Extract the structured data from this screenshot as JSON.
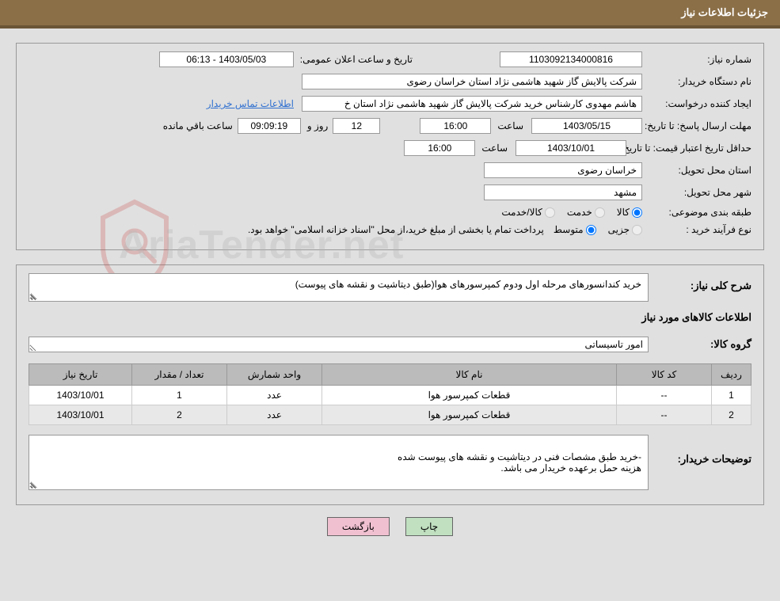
{
  "title_bar": "جزئیات اطلاعات نیاز",
  "panel1": {
    "row1": {
      "need_no_label": "شماره نیاز:",
      "need_no": "1103092134000816",
      "announce_label": "تاریخ و ساعت اعلان عمومی:",
      "announce_value": "1403/05/03 - 06:13"
    },
    "row2": {
      "buyer_label": "نام دستگاه خریدار:",
      "buyer_value": "شرکت پالایش گاز شهید هاشمی نژاد   استان خراسان رضوی"
    },
    "row3": {
      "requester_label": "ایجاد کننده درخواست:",
      "requester_value": "هاشم مهدوی کارشناس خرید شرکت پالایش گاز شهید هاشمی نژاد   استان خ",
      "contact_link": "اطلاعات تماس خریدار"
    },
    "row4": {
      "deadline_label": "مهلت ارسال پاسخ: تا تاریخ:",
      "deadline_date": "1403/05/15",
      "time_label": "ساعت",
      "deadline_time": "16:00",
      "days": "12",
      "days_label": "روز و",
      "countdown": "09:09:19",
      "remain_label": "ساعت باقي مانده"
    },
    "row5": {
      "validity_label": "حداقل تاریخ اعتبار قیمت: تا تاریخ:",
      "validity_date": "1403/10/01",
      "time_label": "ساعت",
      "validity_time": "16:00"
    },
    "row6": {
      "province_label": "استان محل تحویل:",
      "province_value": "خراسان رضوی"
    },
    "row7": {
      "city_label": "شهر محل تحویل:",
      "city_value": "مشهد"
    },
    "row8": {
      "class_label": "طبقه بندی موضوعی:",
      "opt_goods": "کالا",
      "opt_service": "خدمت",
      "opt_both": "کالا/خدمت"
    },
    "row9": {
      "type_label": "نوع فرآیند خرید :",
      "opt_small": "جزیی",
      "opt_medium": "متوسط",
      "note": "پرداخت تمام یا بخشی از مبلغ خرید،از محل \"اسناد خزانه اسلامی\" خواهد بود."
    }
  },
  "panel2": {
    "desc_label": "شرح کلی نیاز:",
    "desc_value": "خرید کندانسورهای مرحله اول ودوم کمپرسورهای هوا(طبق دیتاشیت و نقشه های پیوست)",
    "items_title": "اطلاعات کالاهای مورد نیاز",
    "group_label": "گروه کالا:",
    "group_value": "امور تاسیساتی",
    "table": {
      "headers": [
        "ردیف",
        "کد کالا",
        "نام کالا",
        "واحد شمارش",
        "تعداد / مقدار",
        "تاریخ نیاز"
      ],
      "rows": [
        [
          "1",
          "--",
          "قطعات کمپرسور هوا",
          "عدد",
          "1",
          "1403/10/01"
        ],
        [
          "2",
          "--",
          "قطعات کمپرسور هوا",
          "عدد",
          "2",
          "1403/10/01"
        ]
      ]
    },
    "buyer_notes_label": "توضیحات خریدار:",
    "buyer_notes": "-خرید طبق مشصات فنی در دیتاشیت و نقشه های پیوست شده\nهزینه حمل برعهده خریدار می باشد."
  },
  "buttons": {
    "print": "چاپ",
    "back": "بازگشت"
  },
  "watermark": "AriaTender.net"
}
